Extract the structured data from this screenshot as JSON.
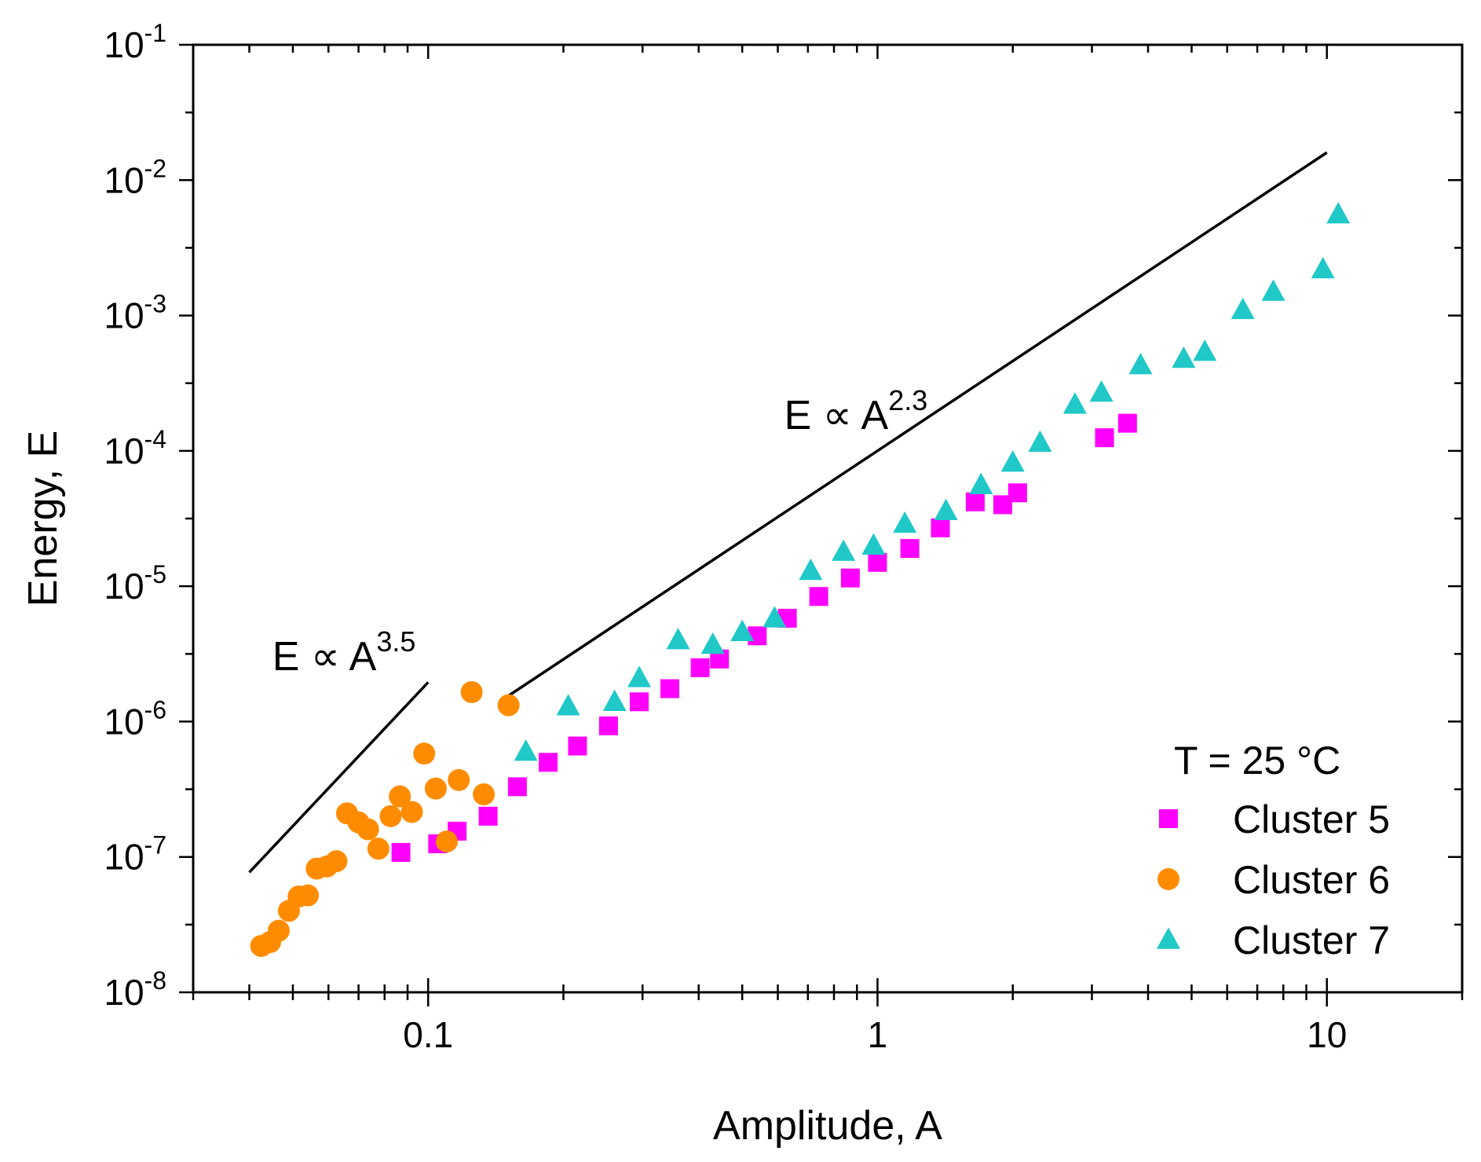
{
  "chart_data": {
    "type": "scatter",
    "xlabel": "Amplitude, A",
    "ylabel": "Energy, E",
    "xscale": "log",
    "yscale": "log",
    "xlim": [
      0.03,
      20
    ],
    "ylim": [
      1e-08,
      0.1
    ],
    "x_ticks": [
      {
        "value": 0.1,
        "label": "0.1"
      },
      {
        "value": 1,
        "label": "1"
      },
      {
        "value": 10,
        "label": "10"
      }
    ],
    "y_ticks": [
      {
        "value": 1e-08,
        "base": "10",
        "exp": "-8"
      },
      {
        "value": 1e-07,
        "base": "10",
        "exp": "-7"
      },
      {
        "value": 1e-06,
        "base": "10",
        "exp": "-6"
      },
      {
        "value": 1e-05,
        "base": "10",
        "exp": "-5"
      },
      {
        "value": 0.0001,
        "base": "10",
        "exp": "-4"
      },
      {
        "value": 0.001,
        "base": "10",
        "exp": "-3"
      },
      {
        "value": 0.01,
        "base": "10",
        "exp": "-2"
      },
      {
        "value": 0.1,
        "base": "10",
        "exp": "-1"
      }
    ],
    "grid": false,
    "legend": {
      "position": "bottom-right",
      "title": "T = 25 °C"
    },
    "series": [
      {
        "name": "Cluster 5",
        "marker": "square",
        "color": "#ff00ff",
        "points": [
          [
            0.087,
            1.08e-07
          ],
          [
            0.105,
            1.25e-07
          ],
          [
            0.116,
            1.55e-07
          ],
          [
            0.136,
            2e-07
          ],
          [
            0.158,
            3.3e-07
          ],
          [
            0.185,
            5e-07
          ],
          [
            0.215,
            6.6e-07
          ],
          [
            0.252,
            9.3e-07
          ],
          [
            0.295,
            1.4e-06
          ],
          [
            0.345,
            1.75e-06
          ],
          [
            0.403,
            2.5e-06
          ],
          [
            0.445,
            2.9e-06
          ],
          [
            0.54,
            4.3e-06
          ],
          [
            0.63,
            5.8e-06
          ],
          [
            0.74,
            8.4e-06
          ],
          [
            0.87,
            1.15e-05
          ],
          [
            1.0,
            1.5e-05
          ],
          [
            1.18,
            1.9e-05
          ],
          [
            1.38,
            2.7e-05
          ],
          [
            1.65,
            4.2e-05
          ],
          [
            1.9,
            4e-05
          ],
          [
            2.05,
            4.9e-05
          ],
          [
            3.2,
            0.000125
          ],
          [
            3.6,
            0.00016
          ]
        ]
      },
      {
        "name": "Cluster 6",
        "marker": "circle",
        "color": "#ff8c00",
        "points": [
          [
            0.0425,
            2.2e-08
          ],
          [
            0.0445,
            2.35e-08
          ],
          [
            0.0465,
            2.85e-08
          ],
          [
            0.049,
            4e-08
          ],
          [
            0.0515,
            5.1e-08
          ],
          [
            0.054,
            5.2e-08
          ],
          [
            0.0565,
            8.2e-08
          ],
          [
            0.0595,
            8.5e-08
          ],
          [
            0.0625,
            9.3e-08
          ],
          [
            0.066,
            2.1e-07
          ],
          [
            0.07,
            1.8e-07
          ],
          [
            0.0735,
            1.6e-07
          ],
          [
            0.0775,
            1.15e-07
          ],
          [
            0.0825,
            2e-07
          ],
          [
            0.0865,
            2.8e-07
          ],
          [
            0.092,
            2.15e-07
          ],
          [
            0.098,
            5.8e-07
          ],
          [
            0.104,
            3.2e-07
          ],
          [
            0.11,
            1.3e-07
          ],
          [
            0.117,
            3.7e-07
          ],
          [
            0.125,
            1.65e-06
          ],
          [
            0.133,
            2.9e-07
          ],
          [
            0.151,
            1.32e-06
          ]
        ]
      },
      {
        "name": "Cluster 7",
        "marker": "triangle",
        "color": "#20c8c8",
        "points": [
          [
            0.165,
            6e-07
          ],
          [
            0.205,
            1.3e-06
          ],
          [
            0.26,
            1.4e-06
          ],
          [
            0.295,
            2.1e-06
          ],
          [
            0.36,
            4e-06
          ],
          [
            0.43,
            3.7e-06
          ],
          [
            0.5,
            4.6e-06
          ],
          [
            0.59,
            5.8e-06
          ],
          [
            0.71,
            1.3e-05
          ],
          [
            0.84,
            1.8e-05
          ],
          [
            0.98,
            2e-05
          ],
          [
            1.15,
            2.9e-05
          ],
          [
            1.42,
            3.6e-05
          ],
          [
            1.7,
            5.6e-05
          ],
          [
            2.0,
            8.2e-05
          ],
          [
            2.3,
            0.000115
          ],
          [
            2.75,
            0.00022
          ],
          [
            3.15,
            0.00027
          ],
          [
            3.85,
            0.00043
          ],
          [
            4.8,
            0.00048
          ],
          [
            5.35,
            0.00054
          ],
          [
            6.5,
            0.0011
          ],
          [
            7.6,
            0.0015
          ],
          [
            9.8,
            0.0022
          ],
          [
            10.6,
            0.0056
          ]
        ]
      }
    ],
    "lines": [
      {
        "label_base": "E ∝ A",
        "label_exp": "3.5",
        "from": [
          0.04,
          7.7e-08
        ],
        "to": [
          0.1,
          1.95e-06
        ],
        "label_at": [
          0.045,
          2.4e-06
        ]
      },
      {
        "label_base": "E ∝ A",
        "label_exp": "2.3",
        "from": [
          0.15,
          1.53e-06
        ],
        "to": [
          10,
          0.016
        ],
        "label_at": [
          0.62,
          0.000145
        ]
      }
    ]
  }
}
